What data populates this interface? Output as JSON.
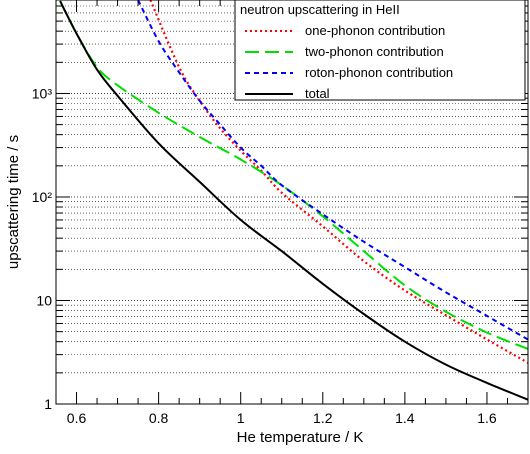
{
  "chart_data": {
    "type": "line",
    "title": "",
    "xlabel": "He temperature / K",
    "ylabel": "upscattering time / s",
    "xlim": [
      0.55,
      1.7
    ],
    "ylim": [
      1,
      8000
    ],
    "y_scale": "log",
    "grid": "horizontal minor and major dotted",
    "x_ticks": [
      0.6,
      0.8,
      1.0,
      1.2,
      1.4,
      1.6
    ],
    "x_tick_labels": [
      "0.6",
      "0.8",
      "1",
      "1.2",
      "1.4",
      "1.6"
    ],
    "y_ticks": [
      1,
      10,
      100,
      1000
    ],
    "y_tick_labels": [
      "1",
      "10",
      "10²",
      "10³"
    ],
    "legend": {
      "title": "neutron upscattering in HeII",
      "placement": "top-right"
    },
    "series": [
      {
        "name": "one-phonon contribution",
        "color": "#ff0000",
        "dash": "dotted",
        "x": [
          0.78,
          0.85,
          0.9,
          0.95,
          1.0,
          1.05,
          1.1,
          1.2,
          1.3,
          1.4,
          1.5,
          1.6,
          1.7
        ],
        "y": [
          8000,
          1800,
          850,
          460,
          280,
          180,
          110,
          52,
          24,
          12.5,
          7.2,
          4.2,
          2.5
        ]
      },
      {
        "name": "two-phonon contribution",
        "color": "#00e000",
        "dash": "long-dash",
        "x": [
          0.56,
          0.6,
          0.65,
          0.7,
          0.8,
          0.9,
          1.0,
          1.1,
          1.2,
          1.3,
          1.4,
          1.5,
          1.6,
          1.7
        ],
        "y": [
          7800,
          3800,
          1800,
          1200,
          650,
          380,
          230,
          130,
          65,
          30,
          14,
          7.8,
          4.9,
          3.4
        ]
      },
      {
        "name": "roton-phonon contribution",
        "color": "#0000ff",
        "dash": "short-dash",
        "x": [
          0.75,
          0.8,
          0.85,
          0.9,
          0.95,
          1.0,
          1.05,
          1.1,
          1.2,
          1.3,
          1.4,
          1.5,
          1.6,
          1.7
        ],
        "y": [
          8000,
          3200,
          1600,
          850,
          500,
          300,
          200,
          130,
          68,
          37,
          21,
          12,
          7.1,
          4.2
        ]
      },
      {
        "name": "total",
        "color": "#000000",
        "dash": "solid",
        "x": [
          0.56,
          0.6,
          0.65,
          0.7,
          0.8,
          0.9,
          1.0,
          1.1,
          1.2,
          1.3,
          1.4,
          1.5,
          1.6,
          1.7
        ],
        "y": [
          7800,
          3800,
          1700,
          950,
          330,
          140,
          60,
          30,
          14.5,
          7.4,
          4.0,
          2.4,
          1.6,
          1.1
        ]
      }
    ]
  }
}
